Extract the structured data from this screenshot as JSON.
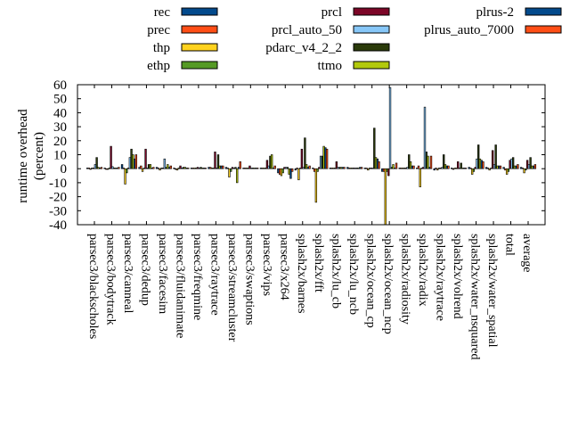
{
  "chart_data": {
    "type": "bar",
    "title": "",
    "xlabel": "",
    "ylabel": "runtime overhead\n(percent)",
    "ylabel_lines": [
      "runtime overhead",
      "(percent)"
    ],
    "ylim": [
      -40,
      60
    ],
    "yticks": [
      60,
      50,
      40,
      30,
      20,
      10,
      0,
      -10,
      -20,
      -30,
      -40
    ],
    "grid": false,
    "legend_position": "top",
    "categories": [
      "parsec3/blackscholes",
      "parsec3/bodytrack",
      "parsec3/canneal",
      "parsec3/dedup",
      "parsec3/facesim",
      "parsec3/fluidanimate",
      "parsec3/freqmine",
      "parsec3/raytrace",
      "parsec3/streamcluster",
      "parsec3/swaptions",
      "parsec3/vips",
      "parsec3/x264",
      "splash2x/barnes",
      "splash2x/fft",
      "splash2x/lu_cb",
      "splash2x/lu_ncb",
      "splash2x/ocean_cp",
      "splash2x/ocean_ncp",
      "splash2x/radiosity",
      "splash2x/radix",
      "splash2x/raytrace",
      "splash2x/volrend",
      "splash2x/water_nsquared",
      "splash2x/water_spatial",
      "total",
      "average"
    ],
    "series": [
      {
        "name": "rec",
        "color": "#034a8c",
        "values": [
          0.5,
          0.5,
          3,
          1,
          1,
          0.5,
          0.5,
          1,
          1,
          0.5,
          0.5,
          -3,
          -1,
          0.5,
          0.5,
          1,
          0.5,
          -2,
          0.5,
          0.5,
          -1,
          0.5,
          1,
          1,
          1,
          1
        ]
      },
      {
        "name": "prec",
        "color": "#ff4e16",
        "values": [
          0.5,
          0,
          0.5,
          2,
          0.5,
          0,
          0.5,
          1,
          0.5,
          0.5,
          0.5,
          -4,
          0.5,
          -2,
          0.5,
          0.5,
          0.5,
          -2,
          0.5,
          2,
          0.5,
          0,
          0.5,
          0.5,
          -1,
          0.5
        ]
      },
      {
        "name": "thp",
        "color": "#ffd21e",
        "values": [
          -0.5,
          -0.5,
          -11,
          -2,
          -1,
          -1,
          0.5,
          0.5,
          -6,
          0.5,
          0.5,
          -5,
          -8,
          -24,
          0.5,
          0.5,
          -1,
          -40,
          0.5,
          -13,
          -1,
          0.5,
          -4,
          -1,
          -4,
          -3
        ]
      },
      {
        "name": "ethp",
        "color": "#559a25",
        "values": [
          0.5,
          0.5,
          -3,
          0.5,
          0.5,
          0.5,
          0.5,
          0.5,
          -2,
          0.5,
          0.5,
          -3,
          0.5,
          -2,
          0.5,
          0.5,
          0.5,
          -2,
          0.5,
          0.5,
          0.5,
          0.5,
          -2,
          0.5,
          -2,
          -1
        ]
      },
      {
        "name": "prcl",
        "color": "#7c0627",
        "values": [
          0.5,
          16,
          0.5,
          14,
          0.5,
          2,
          1,
          12,
          1,
          2,
          6,
          1,
          14,
          1,
          5,
          0.5,
          0.5,
          -5,
          0.5,
          1,
          0.5,
          5,
          1,
          13,
          6,
          6
        ]
      },
      {
        "name": "prcl_auto_50",
        "color": "#87c7f8",
        "values": [
          3,
          1.5,
          8,
          0.5,
          7,
          0.5,
          0.5,
          0.5,
          0.5,
          0.5,
          2,
          1,
          1,
          9,
          1,
          0.5,
          0.5,
          58,
          1,
          44,
          1,
          0.5,
          7,
          3,
          7,
          3
        ]
      },
      {
        "name": "pdarc_v4_2_2",
        "color": "#2a3a0a",
        "values": [
          8,
          0.5,
          14,
          3,
          1,
          1,
          1,
          10,
          1,
          0.5,
          9,
          1,
          22,
          9,
          1,
          0.5,
          29,
          1,
          10,
          12,
          10,
          4,
          17,
          17,
          8,
          8
        ]
      },
      {
        "name": "ttmo",
        "color": "#b2c90c",
        "values": [
          1,
          0.5,
          10,
          3,
          3,
          1,
          0.5,
          2,
          -10,
          0.5,
          10,
          -4,
          3,
          16,
          1,
          0.5,
          8,
          3,
          5,
          9,
          3,
          0.5,
          7,
          2,
          2,
          2
        ]
      },
      {
        "name": "plrus-2",
        "color": "#034a8c",
        "values": [
          0.5,
          0.5,
          7,
          0.5,
          1,
          0.5,
          0.5,
          2,
          1,
          0.5,
          0.5,
          -7,
          1,
          15,
          1,
          1,
          7,
          0.5,
          2,
          1,
          2,
          0.5,
          6,
          2,
          2,
          2
        ]
      },
      {
        "name": "plrus_auto_7000",
        "color": "#ff4e16",
        "values": [
          1,
          1,
          10,
          1,
          2,
          0.5,
          0.5,
          2,
          5,
          0.5,
          2,
          -2,
          2,
          14,
          1,
          1,
          5,
          4,
          2,
          9,
          2,
          0.5,
          5,
          2,
          3,
          3
        ]
      }
    ]
  },
  "legend": {
    "entries": [
      {
        "name": "rec",
        "color": "#034a8c"
      },
      {
        "name": "prec",
        "color": "#ff4e16"
      },
      {
        "name": "thp",
        "color": "#ffd21e"
      },
      {
        "name": "ethp",
        "color": "#559a25"
      },
      {
        "name": "prcl",
        "color": "#7c0627"
      },
      {
        "name": "prcl_auto_50",
        "color": "#87c7f8"
      },
      {
        "name": "pdarc_v4_2_2",
        "color": "#2a3a0a"
      },
      {
        "name": "ttmo",
        "color": "#b2c90c"
      },
      {
        "name": "plrus-2",
        "color": "#034a8c"
      },
      {
        "name": "plrus_auto_7000",
        "color": "#ff4e16"
      }
    ]
  }
}
